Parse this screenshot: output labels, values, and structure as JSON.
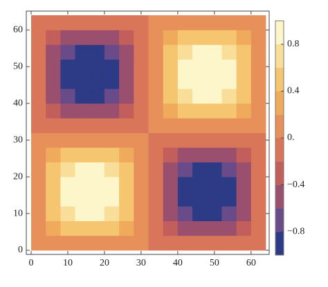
{
  "chart_data": {
    "type": "contour",
    "x": [
      2,
      6,
      10,
      14,
      18,
      22,
      26,
      30,
      34,
      38,
      42,
      46,
      50,
      54,
      58,
      62
    ],
    "y": [
      2,
      6,
      10,
      14,
      18,
      22,
      26,
      30,
      34,
      38,
      42,
      46,
      50,
      54,
      58,
      62
    ],
    "z": [
      [
        0.04,
        0.11,
        0.16,
        0.19,
        0.19,
        0.16,
        0.11,
        0.04,
        -0.04,
        -0.11,
        -0.16,
        -0.19,
        -0.19,
        -0.16,
        -0.11,
        -0.04
      ],
      [
        0.11,
        0.31,
        0.46,
        0.55,
        0.55,
        0.46,
        0.31,
        0.11,
        -0.11,
        -0.31,
        -0.46,
        -0.55,
        -0.55,
        -0.46,
        -0.31,
        -0.11
      ],
      [
        0.16,
        0.46,
        0.69,
        0.82,
        0.82,
        0.69,
        0.46,
        0.16,
        -0.16,
        -0.46,
        -0.69,
        -0.82,
        -0.82,
        -0.69,
        -0.46,
        -0.16
      ],
      [
        0.19,
        0.55,
        0.82,
        0.96,
        0.96,
        0.82,
        0.55,
        0.19,
        -0.19,
        -0.55,
        -0.82,
        -0.96,
        -0.96,
        -0.82,
        -0.55,
        -0.19
      ],
      [
        0.19,
        0.55,
        0.82,
        0.96,
        0.96,
        0.82,
        0.55,
        0.19,
        -0.19,
        -0.55,
        -0.82,
        -0.96,
        -0.96,
        -0.82,
        -0.55,
        -0.19
      ],
      [
        0.16,
        0.46,
        0.69,
        0.82,
        0.82,
        0.69,
        0.46,
        0.16,
        -0.16,
        -0.46,
        -0.69,
        -0.82,
        -0.82,
        -0.69,
        -0.46,
        -0.16
      ],
      [
        0.11,
        0.31,
        0.46,
        0.55,
        0.55,
        0.46,
        0.31,
        0.11,
        -0.11,
        -0.31,
        -0.46,
        -0.55,
        -0.55,
        -0.46,
        -0.31,
        -0.11
      ],
      [
        0.04,
        0.11,
        0.16,
        0.19,
        0.19,
        0.16,
        0.11,
        0.04,
        -0.04,
        -0.11,
        -0.16,
        -0.19,
        -0.19,
        -0.16,
        -0.11,
        -0.04
      ],
      [
        -0.04,
        -0.11,
        -0.16,
        -0.19,
        -0.19,
        -0.16,
        -0.11,
        -0.04,
        0.04,
        0.11,
        0.16,
        0.19,
        0.19,
        0.16,
        0.11,
        0.04
      ],
      [
        -0.11,
        -0.31,
        -0.46,
        -0.55,
        -0.55,
        -0.46,
        -0.31,
        -0.11,
        0.11,
        0.31,
        0.46,
        0.55,
        0.55,
        0.46,
        0.31,
        0.11
      ],
      [
        -0.16,
        -0.46,
        -0.69,
        -0.82,
        -0.82,
        -0.69,
        -0.46,
        -0.16,
        0.16,
        0.46,
        0.69,
        0.82,
        0.82,
        0.69,
        0.46,
        0.16
      ],
      [
        -0.19,
        -0.55,
        -0.82,
        -0.96,
        -0.96,
        -0.82,
        -0.55,
        -0.19,
        0.19,
        0.55,
        0.82,
        0.96,
        0.96,
        0.82,
        0.55,
        0.19
      ],
      [
        -0.19,
        -0.55,
        -0.82,
        -0.96,
        -0.96,
        -0.82,
        -0.55,
        -0.19,
        0.19,
        0.55,
        0.82,
        0.96,
        0.96,
        0.82,
        0.55,
        0.19
      ],
      [
        -0.16,
        -0.46,
        -0.69,
        -0.82,
        -0.82,
        -0.69,
        -0.46,
        -0.16,
        0.16,
        0.46,
        0.69,
        0.82,
        0.82,
        0.69,
        0.46,
        0.16
      ],
      [
        -0.11,
        -0.31,
        -0.46,
        -0.55,
        -0.55,
        -0.46,
        -0.31,
        -0.11,
        0.11,
        0.31,
        0.46,
        0.55,
        0.55,
        0.46,
        0.31,
        0.11
      ],
      [
        -0.04,
        -0.11,
        -0.16,
        -0.19,
        -0.19,
        -0.16,
        -0.11,
        -0.04,
        0.04,
        0.11,
        0.16,
        0.19,
        0.19,
        0.16,
        0.11,
        0.04
      ]
    ],
    "xlim": [
      0,
      64
    ],
    "ylim": [
      0,
      64
    ],
    "xticks": [
      0,
      10,
      20,
      30,
      40,
      50,
      60
    ],
    "yticks": [
      0,
      10,
      20,
      30,
      40,
      50,
      60
    ],
    "levels": [
      -1,
      -0.8,
      -0.6,
      -0.4,
      -0.2,
      0,
      0.2,
      0.4,
      0.6,
      0.8,
      1
    ],
    "colors": [
      "#2d3a86",
      "#6a4b89",
      "#9a4f6e",
      "#c25e5b",
      "#d9765a",
      "#e8905a",
      "#f0aa5c",
      "#f5c570",
      "#f9de9a",
      "#fdf6cb"
    ],
    "zlim": [
      -1,
      1
    ],
    "zticks": [
      {
        "value": -0.8,
        "label": "−0.8"
      },
      {
        "value": -0.4,
        "label": "−0.4"
      },
      {
        "value": 0,
        "label": "0."
      },
      0.4,
      0.8
    ]
  }
}
